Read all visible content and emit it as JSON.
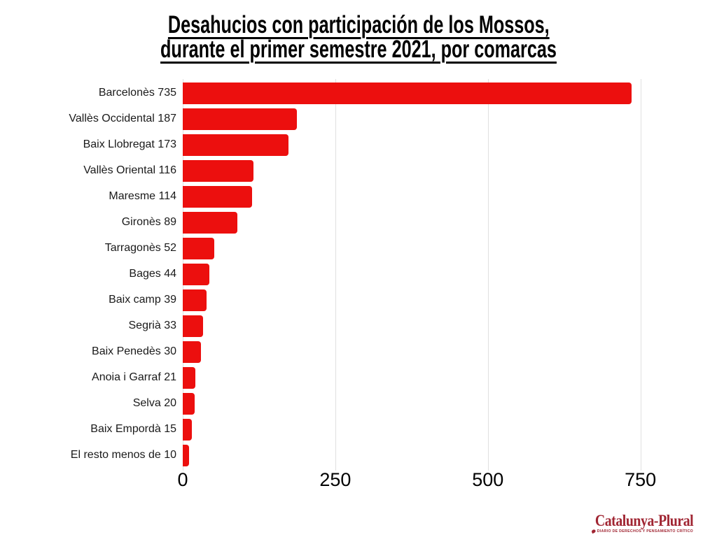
{
  "title": {
    "line1": "Desahucios con participación de los Mossos,",
    "line2": "durante el primer semestre 2021, por comarcas"
  },
  "chart_data": {
    "type": "bar",
    "orientation": "horizontal",
    "title": "Desahucios con participación de los Mossos, durante el primer semestre 2021, por comarcas",
    "categories": [
      "Barcelonès",
      "Vallès Occidental",
      "Baix Llobregat",
      "Vallès Oriental",
      "Maresme",
      "Gironès",
      "Tarragonès",
      "Bages",
      "Baix camp",
      "Segrià",
      "Baix Penedès",
      "Anoia i Garraf",
      "Selva",
      "Baix Empordà",
      "El resto menos de"
    ],
    "values": [
      735,
      187,
      173,
      116,
      114,
      89,
      52,
      44,
      39,
      33,
      30,
      21,
      20,
      15,
      10
    ],
    "bar_label_format": "{category} {value}",
    "xlabel": "",
    "ylabel": "",
    "xlim": [
      0,
      825
    ],
    "xticks": [
      0,
      250,
      500,
      750
    ],
    "grid": true,
    "legend": false,
    "bar_color": "#ec0f0e",
    "gridline_color": "#e0e0e0",
    "label_color": "#1a1a1a",
    "tick_color": "#000000"
  },
  "logo": {
    "text": "Catalunya-Plural",
    "tagline": "DIARIO DE DERECHOS Y PENSAMIENTO CRÍTICO",
    "color": "#a02532"
  }
}
